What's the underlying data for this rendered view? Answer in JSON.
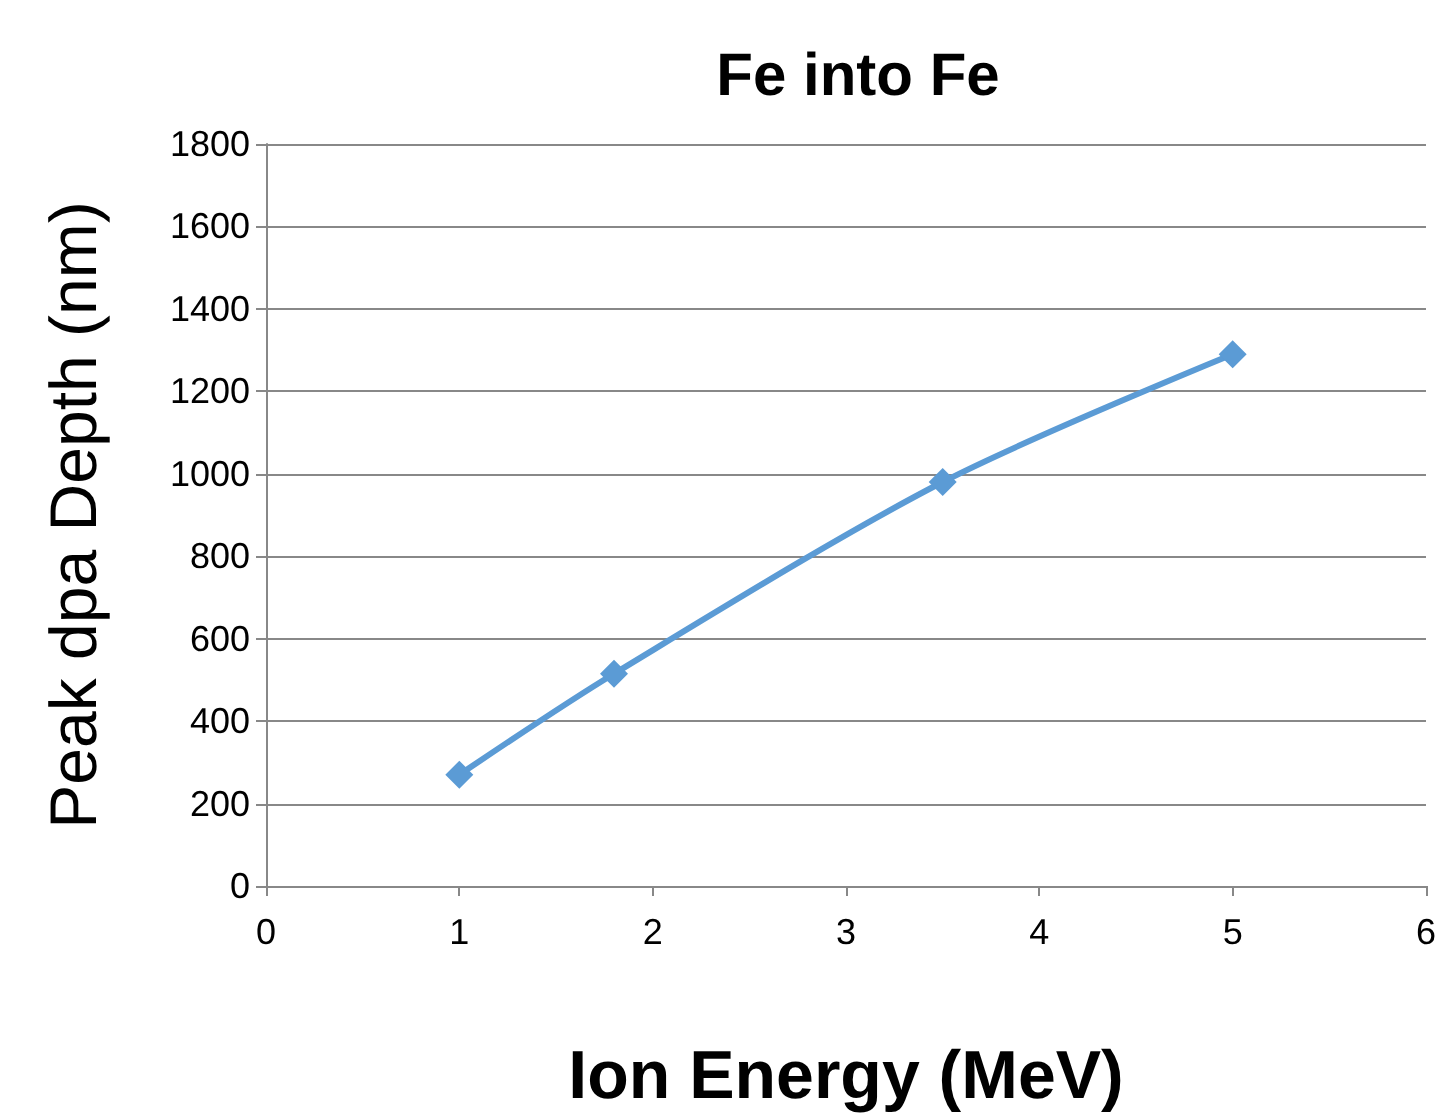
{
  "chart_data": {
    "type": "line",
    "title": "Fe into Fe",
    "xlabel": "Ion Energy (MeV)",
    "ylabel": "Peak dpa Depth (nm)",
    "x": [
      1,
      1.8,
      3.5,
      5
    ],
    "series": [
      {
        "color": "#5b9bd5",
        "values": [
          270,
          515,
          980,
          1290
        ]
      }
    ],
    "xlim": [
      0,
      6
    ],
    "xticks": [
      0,
      1,
      2,
      3,
      4,
      5,
      6
    ],
    "ylim": [
      0,
      1800
    ],
    "yticks": [
      0,
      200,
      400,
      600,
      800,
      1000,
      1200,
      1400,
      1600,
      1800
    ],
    "grid": "y",
    "marker": "diamond",
    "line_style": "solid"
  }
}
